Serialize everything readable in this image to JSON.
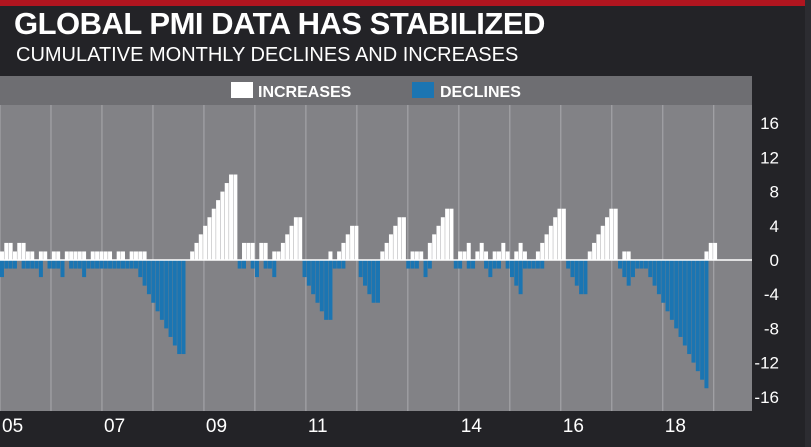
{
  "title": "GLOBAL PMI DATA HAS STABILIZED",
  "subtitle": "CUMULATIVE MONTHLY DECLINES AND INCREASES",
  "colors": {
    "background": "#232327",
    "plot_background": "#828286",
    "legend_band": "#6e6e72",
    "increases": "#ffffff",
    "declines": "#1b75b2",
    "accent": "#b0151f"
  },
  "chart_data": {
    "type": "bar",
    "title": "GLOBAL PMI DATA HAS STABILIZED",
    "subtitle": "CUMULATIVE MONTHLY DECLINES AND INCREASES",
    "legend": [
      "INCREASES",
      "DECLINES"
    ],
    "legend_position": "top-center",
    "grid": true,
    "x_start": 2005.0,
    "x_end": 2019.75,
    "ylim": [
      -17.5,
      18
    ],
    "yticks": [
      16,
      12,
      8,
      4,
      0,
      -4,
      -8,
      -12,
      -16
    ],
    "ytick_labels": [
      "16",
      "12",
      "8",
      "4",
      "0",
      "-4",
      "-8",
      "-12",
      "-16"
    ],
    "xtick_values": [
      2005,
      2007,
      2009,
      2011,
      2014,
      2016,
      2018
    ],
    "xtick_labels": [
      "05",
      "07",
      "09",
      "11",
      "14",
      "16",
      "18"
    ],
    "y_axis_position": "right",
    "series": [
      {
        "name": "INCREASES",
        "values": [
          1,
          2,
          2,
          1,
          2,
          2,
          1,
          1,
          0,
          1,
          1,
          0,
          1,
          1,
          0,
          1,
          1,
          1,
          1,
          1,
          0,
          1,
          1,
          1,
          1,
          1,
          0,
          1,
          1,
          0,
          1,
          1,
          1,
          1,
          0,
          0,
          0,
          0,
          0,
          0,
          0,
          0,
          0,
          0,
          1,
          2,
          3,
          4,
          5,
          6,
          7,
          8,
          9,
          10,
          10,
          0,
          2,
          2,
          2,
          0,
          2,
          2,
          0,
          1,
          1,
          2,
          3,
          4,
          5,
          5,
          0,
          0,
          0,
          0,
          0,
          0,
          1,
          0,
          1,
          2,
          3,
          4,
          4,
          0,
          0,
          0,
          0,
          0,
          1,
          2,
          3,
          4,
          5,
          5,
          0,
          1,
          1,
          1,
          0,
          2,
          3,
          4,
          5,
          6,
          6,
          0,
          1,
          1,
          2,
          0,
          1,
          2,
          1,
          0,
          1,
          1,
          2,
          1,
          0,
          1,
          2,
          1,
          0,
          0,
          1,
          2,
          3,
          4,
          5,
          6,
          6,
          0,
          0,
          0,
          0,
          0,
          1,
          2,
          3,
          4,
          5,
          6,
          6,
          0,
          1,
          1,
          0,
          0,
          0,
          0,
          0,
          0,
          0,
          0,
          0,
          0,
          0,
          0,
          0,
          0,
          0,
          0,
          0,
          1,
          2,
          2,
          0,
          0,
          0,
          0,
          0,
          0,
          0,
          0
        ]
      },
      {
        "name": "DECLINES",
        "values": [
          -2,
          -1,
          -1,
          -1,
          0,
          -1,
          -1,
          -1,
          -1,
          -2,
          0,
          -1,
          -1,
          -1,
          -2,
          0,
          -1,
          -1,
          -1,
          -2,
          -1,
          -1,
          -1,
          -1,
          -1,
          -1,
          -1,
          -1,
          -1,
          -1,
          -1,
          -1,
          -2,
          -3,
          -4,
          -5,
          -6,
          -7,
          -8,
          -9,
          -10,
          -11,
          -11,
          0,
          0,
          0,
          0,
          0,
          0,
          0,
          0,
          0,
          0,
          0,
          0,
          -1,
          -1,
          0,
          -1,
          -2,
          0,
          -1,
          -1,
          -2,
          0,
          0,
          0,
          0,
          0,
          0,
          -2,
          -3,
          -4,
          -5,
          -6,
          -7,
          -7,
          -1,
          -1,
          -1,
          0,
          0,
          0,
          -2,
          -3,
          -4,
          -5,
          -5,
          0,
          0,
          0,
          0,
          0,
          0,
          -1,
          -1,
          -1,
          0,
          -2,
          -1,
          0,
          0,
          0,
          0,
          0,
          -1,
          -1,
          0,
          -1,
          -1,
          0,
          0,
          -1,
          -2,
          -1,
          -1,
          0,
          -1,
          -2,
          -3,
          -4,
          -1,
          -1,
          -1,
          -1,
          -1,
          0,
          0,
          0,
          0,
          0,
          -1,
          -2,
          -3,
          -4,
          -4,
          0,
          0,
          0,
          0,
          0,
          0,
          0,
          -1,
          -2,
          -3,
          -2,
          -1,
          -1,
          -1,
          -2,
          -3,
          -4,
          -5,
          -6,
          -7,
          -8,
          -9,
          -10,
          -11,
          -12,
          -13,
          -14,
          -15,
          0,
          0,
          0,
          0,
          0,
          0,
          0,
          0,
          0,
          0,
          0,
          0,
          0
        ]
      }
    ]
  }
}
